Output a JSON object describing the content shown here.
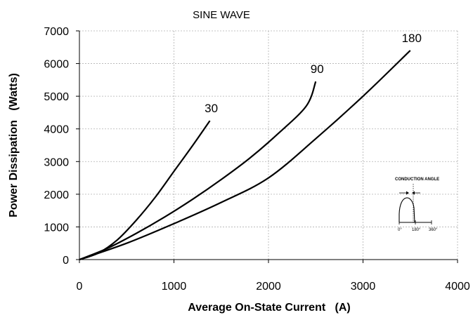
{
  "chart_data": {
    "type": "line",
    "title": "SINE WAVE",
    "xlabel": "Average On-State Current   (A)",
    "ylabel": "Power Dissipation   (Watts)",
    "xlim": [
      0,
      4000
    ],
    "ylim": [
      0,
      7000
    ],
    "xticks": [
      0,
      1000,
      2000,
      3000,
      4000
    ],
    "yticks": [
      0,
      1000,
      2000,
      3000,
      4000,
      5000,
      6000,
      7000
    ],
    "x_tick_labels": [
      "0",
      "1000",
      "2000",
      "3000",
      "4000"
    ],
    "y_tick_labels": [
      "0",
      "1000",
      "2000",
      "3000",
      "4000",
      "5000",
      "6000",
      "7000"
    ],
    "grid": true,
    "series": [
      {
        "name": "30",
        "x": [
          0,
          200,
          400,
          600,
          800,
          1000,
          1200,
          1380
        ],
        "y": [
          0,
          200,
          600,
          1200,
          1900,
          2700,
          3500,
          4250
        ]
      },
      {
        "name": "90",
        "x": [
          0,
          300,
          600,
          900,
          1200,
          1500,
          1800,
          2100,
          2400,
          2500
        ],
        "y": [
          0,
          350,
          800,
          1300,
          1850,
          2450,
          3100,
          3850,
          4700,
          5450
        ]
      },
      {
        "name": "180",
        "x": [
          0,
          500,
          1000,
          1500,
          2000,
          2500,
          3000,
          3500
        ],
        "y": [
          0,
          500,
          1100,
          1750,
          2500,
          3700,
          5000,
          6400
        ]
      }
    ],
    "inset": {
      "title": "CONDUCTION ANGLE",
      "tick_labels": [
        "0°",
        "180°",
        "360°"
      ]
    }
  }
}
